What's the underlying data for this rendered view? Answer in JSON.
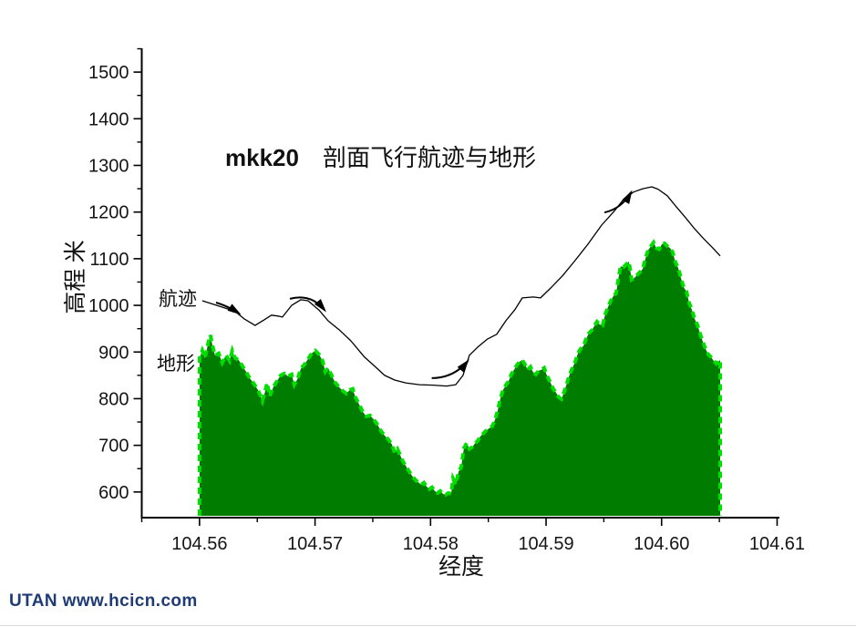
{
  "title": {
    "model": "mkk20",
    "text": "剖面飞行航迹与地形"
  },
  "labels": {
    "trajectory": "航迹",
    "terrain": "地形"
  },
  "watermark": "UTAN  www.hcicn.com",
  "colors": {
    "terrain_fill": "#007d00",
    "terrain_edge": "#00df00",
    "trajectory": "#000000",
    "axis": "#000000",
    "watermark": "#1f3b76"
  },
  "chart_data": {
    "type": "area",
    "title": "mkk20 剖面飞行航迹与地形",
    "xlabel": "经度",
    "ylabel": "高程 米",
    "xlim": [
      104.555,
      104.6102
    ],
    "ylim": [
      545,
      1551
    ],
    "grid": false,
    "x_major_ticks": [
      104.56,
      104.57,
      104.58,
      104.59,
      104.6,
      104.61
    ],
    "x_tick_labels": [
      "104.56",
      "104.57",
      "104.58",
      "104.59",
      "104.60",
      "104.61"
    ],
    "x_minor_ticks": [
      104.555,
      104.565,
      104.575,
      104.585,
      104.595,
      104.605
    ],
    "y_major_ticks": [
      600,
      700,
      800,
      900,
      1000,
      1100,
      1200,
      1300,
      1400,
      1500
    ],
    "y_minor_ticks": [
      650,
      750,
      850,
      950,
      1050,
      1150,
      1250,
      1350,
      1450,
      1550
    ],
    "series": [
      {
        "name": "地形",
        "type": "area",
        "fill": "#007d00",
        "edge": "#00df00",
        "points": [
          [
            104.56,
            887
          ],
          [
            104.56024,
            903
          ],
          [
            104.56047,
            887
          ],
          [
            104.56079,
            924
          ],
          [
            104.56095,
            936
          ],
          [
            104.5611,
            916
          ],
          [
            104.56134,
            893
          ],
          [
            104.56166,
            897
          ],
          [
            104.56197,
            877
          ],
          [
            104.56229,
            893
          ],
          [
            104.5626,
            881
          ],
          [
            104.56284,
            903
          ],
          [
            104.56308,
            887
          ],
          [
            104.56339,
            883
          ],
          [
            104.56371,
            870
          ],
          [
            104.56403,
            858
          ],
          [
            104.56434,
            844
          ],
          [
            104.56466,
            834
          ],
          [
            104.56505,
            819
          ],
          [
            104.56529,
            805
          ],
          [
            104.56545,
            795
          ],
          [
            104.56568,
            815
          ],
          [
            104.56584,
            834
          ],
          [
            104.56608,
            805
          ],
          [
            104.56639,
            825
          ],
          [
            104.56671,
            838
          ],
          [
            104.56702,
            850
          ],
          [
            104.56734,
            854
          ],
          [
            104.56766,
            848
          ],
          [
            104.56797,
            852
          ],
          [
            104.56821,
            830
          ],
          [
            104.56852,
            844
          ],
          [
            104.56876,
            864
          ],
          [
            104.56908,
            873
          ],
          [
            104.56939,
            885
          ],
          [
            104.56971,
            897
          ],
          [
            104.57002,
            903
          ],
          [
            104.57034,
            895
          ],
          [
            104.57066,
            881
          ],
          [
            104.57089,
            858
          ],
          [
            104.57113,
            866
          ],
          [
            104.57144,
            850
          ],
          [
            104.57176,
            834
          ],
          [
            104.57208,
            825
          ],
          [
            104.57239,
            817
          ],
          [
            104.57271,
            811
          ],
          [
            104.57302,
            819
          ],
          [
            104.57326,
            821
          ],
          [
            104.5735,
            803
          ],
          [
            104.57381,
            788
          ],
          [
            104.57413,
            772
          ],
          [
            104.57444,
            762
          ],
          [
            104.57476,
            764
          ],
          [
            104.57507,
            756
          ],
          [
            104.57539,
            745
          ],
          [
            104.57571,
            731
          ],
          [
            104.57602,
            721
          ],
          [
            104.57634,
            713
          ],
          [
            104.57665,
            702
          ],
          [
            104.57689,
            684
          ],
          [
            104.57713,
            692
          ],
          [
            104.57736,
            680
          ],
          [
            104.5776,
            666
          ],
          [
            104.57784,
            657
          ],
          [
            104.57807,
            647
          ],
          [
            104.57839,
            635
          ],
          [
            104.57871,
            625
          ],
          [
            104.57894,
            621
          ],
          [
            104.57918,
            616
          ],
          [
            104.57942,
            620
          ],
          [
            104.57965,
            612
          ],
          [
            104.57989,
            606
          ],
          [
            104.58013,
            610
          ],
          [
            104.58036,
            602
          ],
          [
            104.5806,
            598
          ],
          [
            104.58084,
            602
          ],
          [
            104.58107,
            596
          ],
          [
            104.58131,
            594
          ],
          [
            104.58155,
            598
          ],
          [
            104.58178,
            596
          ],
          [
            104.58194,
            629
          ],
          [
            104.58218,
            616
          ],
          [
            104.58242,
            643
          ],
          [
            104.58265,
            653
          ],
          [
            104.58289,
            694
          ],
          [
            104.58313,
            705
          ],
          [
            104.58336,
            692
          ],
          [
            104.5836,
            696
          ],
          [
            104.58384,
            704
          ],
          [
            104.58407,
            709
          ],
          [
            104.58431,
            719
          ],
          [
            104.58455,
            725
          ],
          [
            104.58478,
            731
          ],
          [
            104.5851,
            737
          ],
          [
            104.58534,
            741
          ],
          [
            104.58557,
            754
          ],
          [
            104.58581,
            774
          ],
          [
            104.58605,
            801
          ],
          [
            104.58628,
            819
          ],
          [
            104.58652,
            829
          ],
          [
            104.58676,
            838
          ],
          [
            104.58699,
            852
          ],
          [
            104.58723,
            862
          ],
          [
            104.58747,
            872
          ],
          [
            104.5877,
            879
          ],
          [
            104.58794,
            883
          ],
          [
            104.58818,
            873
          ],
          [
            104.58841,
            862
          ],
          [
            104.58865,
            868
          ],
          [
            104.58889,
            856
          ],
          [
            104.58912,
            852
          ],
          [
            104.58936,
            860
          ],
          [
            104.5896,
            862
          ],
          [
            104.58983,
            866
          ],
          [
            104.59007,
            850
          ],
          [
            104.59039,
            834
          ],
          [
            104.59062,
            821
          ],
          [
            104.59086,
            813
          ],
          [
            104.5911,
            803
          ],
          [
            104.59133,
            799
          ],
          [
            104.59157,
            815
          ],
          [
            104.59181,
            834
          ],
          [
            104.59204,
            852
          ],
          [
            104.59228,
            866
          ],
          [
            104.59252,
            879
          ],
          [
            104.59275,
            897
          ],
          [
            104.59299,
            907
          ],
          [
            104.59323,
            913
          ],
          [
            104.59346,
            928
          ],
          [
            104.5937,
            940
          ],
          [
            104.59394,
            946
          ],
          [
            104.59418,
            956
          ],
          [
            104.59441,
            965
          ],
          [
            104.59465,
            959
          ],
          [
            104.59489,
            957
          ],
          [
            104.59512,
            981
          ],
          [
            104.59536,
            996
          ],
          [
            104.5956,
            1010
          ],
          [
            104.59583,
            1020
          ],
          [
            104.59607,
            1026
          ],
          [
            104.59631,
            1065
          ],
          [
            104.59646,
            1084
          ],
          [
            104.5967,
            1082
          ],
          [
            104.59694,
            1088
          ],
          [
            104.59717,
            1094
          ],
          [
            104.59741,
            1055
          ],
          [
            104.59765,
            1059
          ],
          [
            104.59788,
            1065
          ],
          [
            104.59812,
            1071
          ],
          [
            104.59836,
            1078
          ],
          [
            104.5986,
            1100
          ],
          [
            104.59883,
            1118
          ],
          [
            104.59907,
            1127
          ],
          [
            104.59931,
            1135
          ],
          [
            104.59954,
            1123
          ],
          [
            104.59978,
            1120
          ],
          [
            104.60002,
            1131
          ],
          [
            104.60025,
            1133
          ],
          [
            104.60049,
            1127
          ],
          [
            104.60073,
            1123
          ],
          [
            104.60096,
            1114
          ],
          [
            104.6012,
            1092
          ],
          [
            104.60144,
            1080
          ],
          [
            104.60167,
            1059
          ],
          [
            104.60191,
            1039
          ],
          [
            104.60215,
            1030
          ],
          [
            104.60238,
            1006
          ],
          [
            104.60262,
            991
          ],
          [
            104.60286,
            971
          ],
          [
            104.60309,
            959
          ],
          [
            104.60333,
            940
          ],
          [
            104.60357,
            922
          ],
          [
            104.6038,
            907
          ],
          [
            104.60404,
            895
          ],
          [
            104.60428,
            889
          ],
          [
            104.60451,
            881
          ],
          [
            104.60475,
            875
          ],
          [
            104.60507,
            883
          ]
        ]
      },
      {
        "name": "航迹",
        "type": "line",
        "color": "#000000",
        "points": [
          [
            104.56024,
            1010
          ],
          [
            104.5615,
            1000
          ],
          [
            104.56308,
            987
          ],
          [
            104.56387,
            971
          ],
          [
            104.56481,
            957
          ],
          [
            104.5656,
            969
          ],
          [
            104.56623,
            979
          ],
          [
            104.56679,
            977
          ],
          [
            104.56718,
            975
          ],
          [
            104.56797,
            1000
          ],
          [
            104.56876,
            1012
          ],
          [
            104.56939,
            1010
          ],
          [
            104.57034,
            990
          ],
          [
            104.57113,
            967
          ],
          [
            104.57208,
            948
          ],
          [
            104.5731,
            924
          ],
          [
            104.57429,
            889
          ],
          [
            104.57523,
            868
          ],
          [
            104.57602,
            850
          ],
          [
            104.57689,
            840
          ],
          [
            104.57784,
            834
          ],
          [
            104.57902,
            830
          ],
          [
            104.58021,
            829
          ],
          [
            104.58139,
            827
          ],
          [
            104.58218,
            830
          ],
          [
            104.58281,
            850
          ],
          [
            104.58336,
            893
          ],
          [
            104.58415,
            912
          ],
          [
            104.58494,
            928
          ],
          [
            104.58573,
            938
          ],
          [
            104.58652,
            967
          ],
          [
            104.58731,
            991
          ],
          [
            104.58794,
            1016
          ],
          [
            104.58889,
            1018
          ],
          [
            104.58952,
            1016
          ],
          [
            104.59047,
            1039
          ],
          [
            104.59141,
            1063
          ],
          [
            104.59244,
            1094
          ],
          [
            104.59362,
            1131
          ],
          [
            104.59481,
            1172
          ],
          [
            104.59583,
            1200
          ],
          [
            104.59678,
            1229
          ],
          [
            104.59757,
            1243
          ],
          [
            104.59836,
            1250
          ],
          [
            104.59915,
            1254
          ],
          [
            104.5997,
            1249
          ],
          [
            104.60049,
            1235
          ],
          [
            104.60128,
            1211
          ],
          [
            104.60207,
            1188
          ],
          [
            104.60286,
            1164
          ],
          [
            104.60364,
            1143
          ],
          [
            104.60443,
            1123
          ],
          [
            104.60507,
            1106
          ]
        ]
      }
    ],
    "arrows": [
      {
        "tail": [
          104.56143,
          1006
        ],
        "head": [
          104.56341,
          983
        ],
        "bow": 2
      },
      {
        "tail": [
          104.56782,
          1014
        ],
        "head": [
          104.57082,
          990
        ],
        "bow": 13
      },
      {
        "tail": [
          104.5801,
          844
        ],
        "head": [
          104.5832,
          880
        ],
        "bow": -10
      },
      {
        "tail": [
          104.59506,
          1199
        ],
        "head": [
          104.59734,
          1242
        ],
        "bow": -8
      }
    ],
    "legend_position": "none"
  }
}
